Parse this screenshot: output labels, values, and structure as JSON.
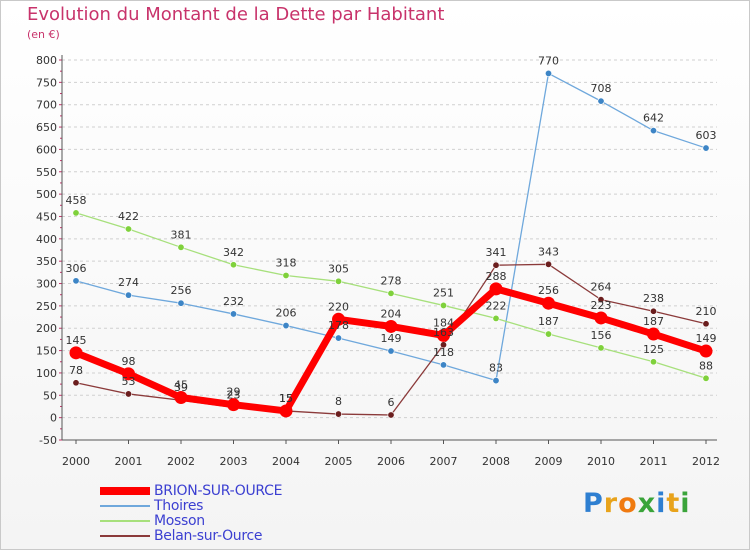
{
  "title": "Evolution du Montant de la Dette par Habitant",
  "unit": "(en €)",
  "logo": {
    "text": "Proxiti",
    "letters": [
      "P",
      "r",
      "o",
      "x",
      "i",
      "t",
      "i"
    ]
  },
  "colors": {
    "axis_text": "#333333",
    "grid": "#d0d0d0",
    "title": "#c8336b",
    "legend_text": "#3b3fd1"
  },
  "chart_data": {
    "type": "line",
    "title": "Evolution du Montant de la Dette par Habitant",
    "ylabel": "(en €)",
    "x": [
      "2000",
      "2001",
      "2002",
      "2003",
      "2004",
      "2005",
      "2006",
      "2007",
      "2008",
      "2009",
      "2010",
      "2011",
      "2012"
    ],
    "ylim": [
      -50,
      800
    ],
    "yticks": [
      -50,
      0,
      50,
      100,
      150,
      200,
      250,
      300,
      350,
      400,
      450,
      500,
      550,
      600,
      650,
      700,
      750,
      800
    ],
    "grid": "horizontal-dashed",
    "legend_position": "bottom-left",
    "series": [
      {
        "name": "BRION-SUR-OURCE",
        "color": "#ff0000",
        "dot": "#ff0000",
        "width": 7,
        "values": [
          145,
          98,
          45,
          29,
          15,
          220,
          204,
          184,
          288,
          256,
          223,
          187,
          149
        ],
        "labels": [
          "145",
          "98",
          "45",
          "29",
          "15",
          "220",
          "204",
          "184",
          "288",
          "256",
          "223",
          "187",
          "149"
        ]
      },
      {
        "name": "Thoires",
        "color": "#6fa8dc",
        "dot": "#3d85c6",
        "width": 1.3,
        "values": [
          306,
          274,
          256,
          232,
          206,
          178,
          149,
          118,
          83,
          770,
          708,
          642,
          603
        ],
        "labels": [
          "306",
          "274",
          "256",
          "232",
          "206",
          "178",
          "149",
          "118",
          "83",
          "770",
          "708",
          "642",
          "603"
        ]
      },
      {
        "name": "Mosson",
        "color": "#a7e07c",
        "dot": "#7fd13b",
        "width": 1.3,
        "values": [
          458,
          422,
          381,
          342,
          318,
          305,
          278,
          251,
          222,
          187,
          156,
          125,
          88
        ],
        "labels": [
          "458",
          "422",
          "381",
          "342",
          "318",
          "305",
          "278",
          "251",
          "222",
          "187",
          "156",
          "125",
          "88"
        ]
      },
      {
        "name": "Belan-sur-Ource",
        "color": "#8b3a3a",
        "dot": "#6b1e1e",
        "width": 1.3,
        "values": [
          78,
          53,
          39,
          23,
          15,
          8,
          6,
          163,
          341,
          343,
          264,
          238,
          210
        ],
        "labels": [
          "78",
          "53",
          "39",
          "23",
          "15",
          "8",
          "6",
          "163",
          "341",
          "343",
          "264",
          "238",
          "210"
        ]
      }
    ]
  }
}
